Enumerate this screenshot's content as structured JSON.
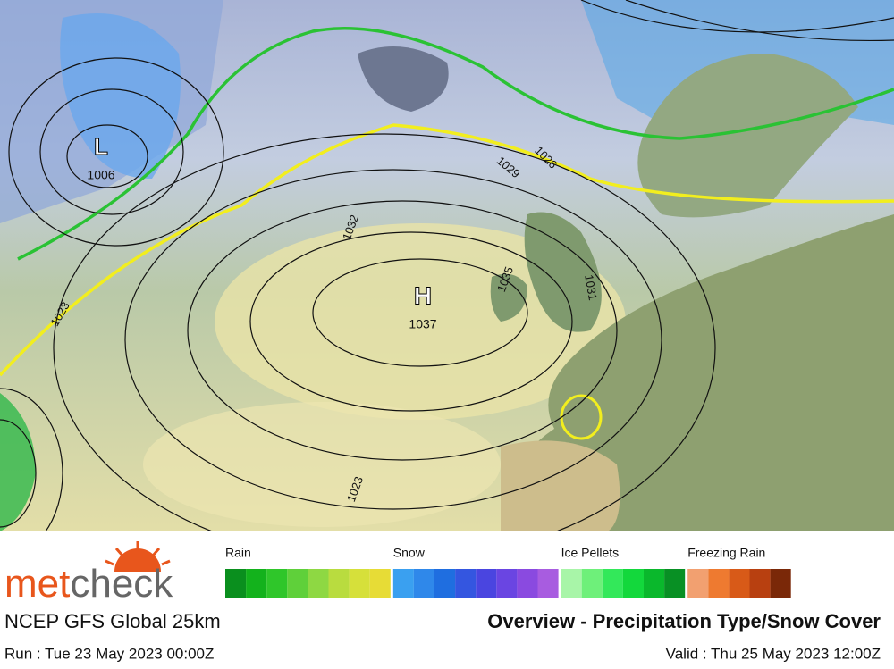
{
  "map": {
    "lows": [
      {
        "symbol": "L",
        "pressure": "1006"
      }
    ],
    "highs": [
      {
        "symbol": "H",
        "pressure": "1037"
      }
    ],
    "isobar_labels": [
      "1032",
      "1029",
      "1026",
      "1035",
      "1031",
      "1023",
      "1023"
    ]
  },
  "logo": {
    "part1": "met",
    "part2": "check"
  },
  "model": "NCEP GFS Global 25km",
  "title": "Overview - Precipitation Type/Snow Cover",
  "run": "Run : Tue 23 May 2023 00:00Z",
  "valid": "Valid : Thu 25 May 2023 12:00Z",
  "legend": [
    {
      "label": "Rain",
      "colors": [
        "#0a8f1e",
        "#13b21c",
        "#2fc62a",
        "#5fd03a",
        "#8ed843",
        "#b9dc3f",
        "#d6e03a",
        "#e7dc36"
      ]
    },
    {
      "label": "Snow",
      "colors": [
        "#3aa0f0",
        "#2f88ea",
        "#1f6ee0",
        "#3456e0",
        "#4a45e0",
        "#6a45e2",
        "#8a4ae0",
        "#a85ce0"
      ]
    },
    {
      "label": "Ice Pellets",
      "colors": [
        "#a8f5a8",
        "#6ef07a",
        "#33e85a",
        "#13d83c",
        "#0ab82c",
        "#089024"
      ]
    },
    {
      "label": "Freezing Rain",
      "colors": [
        "#f2a070",
        "#ee7a30",
        "#d85a18",
        "#b84010",
        "#7a2808"
      ]
    }
  ]
}
